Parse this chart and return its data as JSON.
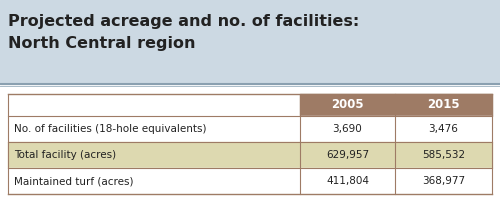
{
  "title_line1": "Projected acreage and no. of facilities:",
  "title_line2": "North Central region",
  "title_bg_color": "#ccd9e3",
  "title_border_color": "#8aa0b0",
  "header_bg_color": "#9e7b65",
  "header_text_color": "#ffffff",
  "col_headers": [
    "2005",
    "2015"
  ],
  "rows": [
    {
      "label": "No. of facilities (18-hole equivalents)",
      "values": [
        "3,690",
        "3,476"
      ],
      "row_bg": "#ffffff"
    },
    {
      "label": "Total facility (acres)",
      "values": [
        "629,957",
        "585,532"
      ],
      "row_bg": "#ddd9b0"
    },
    {
      "label": "Maintained turf (acres)",
      "values": [
        "411,804",
        "368,977"
      ],
      "row_bg": "#ffffff"
    }
  ],
  "border_color": "#9e7b65",
  "text_color": "#222222",
  "fig_w": 5.0,
  "fig_h": 2.12,
  "dpi": 100
}
